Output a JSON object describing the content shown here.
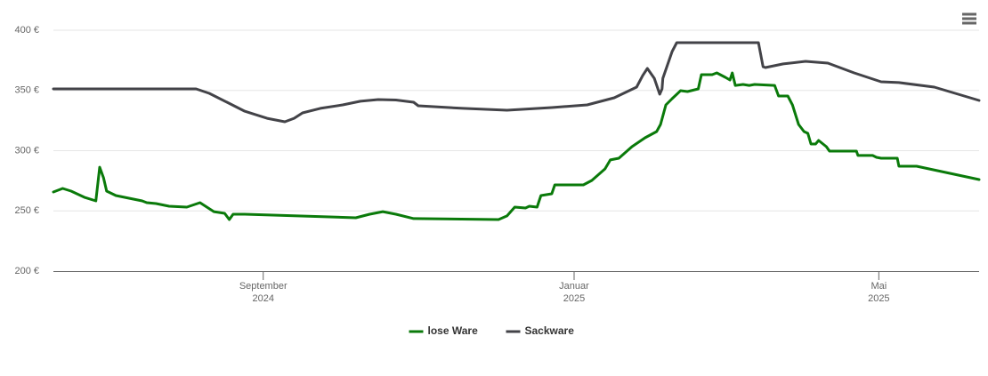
{
  "chart_data": {
    "type": "line",
    "xlim": [
      0,
      12
    ],
    "xticks": [
      {
        "value": 2.72,
        "label": "September 2024"
      },
      {
        "value": 6.75,
        "label": "Januar 2025"
      },
      {
        "value": 10.7,
        "label": "Mai 2025"
      }
    ],
    "ylim": [
      200,
      400
    ],
    "yticks": [
      {
        "value": 200,
        "label": "200 €"
      },
      {
        "value": 250,
        "label": "250 €"
      },
      {
        "value": 300,
        "label": "300 €"
      },
      {
        "value": 350,
        "label": "350 €"
      },
      {
        "value": 400,
        "label": "400 €"
      }
    ],
    "grid": true,
    "legend": "bottom",
    "series": [
      {
        "name": "lose Ware",
        "color": "#0a7a0a",
        "x": [
          0,
          0.12,
          0.23,
          0.4,
          0.55,
          0.6,
          0.65,
          0.69,
          0.81,
          1.15,
          1.21,
          1.33,
          1.5,
          1.73,
          1.9,
          2.08,
          2.22,
          2.28,
          2.33,
          2.48,
          3.92,
          4.1,
          4.27,
          4.44,
          4.67,
          5.77,
          5.88,
          5.98,
          6.12,
          6.17,
          6.27,
          6.32,
          6.46,
          6.5,
          6.87,
          6.98,
          7.15,
          7.22,
          7.33,
          7.5,
          7.67,
          7.82,
          7.87,
          7.94,
          8.02,
          8.13,
          8.22,
          8.36,
          8.4,
          8.54,
          8.6,
          8.71,
          8.77,
          8.8,
          8.84,
          8.94,
          9.02,
          9.09,
          9.35,
          9.4,
          9.52,
          9.58,
          9.66,
          9.73,
          9.78,
          9.82,
          9.88,
          9.92,
          10.02,
          10.06,
          10.41,
          10.43,
          10.62,
          10.67,
          10.73,
          10.94,
          10.96,
          11.19,
          12.0
        ],
        "values": [
          265.7,
          268.6,
          266.4,
          261.3,
          258.3,
          286.3,
          277.5,
          266.4,
          262.7,
          258.3,
          256.8,
          256.1,
          253.9,
          253.1,
          256.8,
          249.4,
          248.0,
          242.8,
          247.2,
          247.2,
          244.3,
          247.2,
          249.4,
          247.2,
          243.6,
          242.8,
          245.8,
          253.1,
          252.4,
          253.9,
          253.1,
          262.7,
          264.2,
          271.6,
          271.6,
          275.3,
          284.9,
          292.3,
          293.7,
          303.3,
          310.7,
          315.9,
          321.8,
          338.0,
          343.2,
          349.8,
          349.1,
          351.3,
          363.1,
          363.1,
          364.6,
          360.9,
          358.7,
          364.6,
          354.2,
          355.0,
          354.2,
          355.0,
          354.2,
          345.4,
          345.4,
          338.0,
          321.8,
          315.9,
          314.4,
          305.5,
          305.5,
          308.5,
          303.3,
          299.6,
          299.6,
          296.0,
          296.0,
          294.5,
          293.7,
          293.7,
          287.1,
          287.1,
          276.0
        ]
      },
      {
        "name": "Sackware",
        "color": "#434348",
        "x": [
          0,
          1.85,
          2.02,
          2.25,
          2.48,
          2.77,
          3.0,
          3.12,
          3.23,
          3.46,
          3.75,
          3.98,
          4.21,
          4.44,
          4.67,
          4.73,
          5.31,
          5.88,
          6.46,
          6.92,
          7.27,
          7.56,
          7.64,
          7.7,
          7.79,
          7.86,
          7.89,
          7.9,
          8.02,
          8.08,
          9.14,
          9.2,
          9.23,
          9.46,
          9.75,
          10.04,
          10.38,
          10.73,
          10.96,
          11.42,
          12.0
        ],
        "values": [
          351.3,
          351.3,
          347.6,
          340.2,
          332.8,
          326.9,
          324.0,
          326.9,
          331.4,
          335.1,
          338.0,
          341.0,
          342.4,
          342.1,
          340.2,
          337.3,
          335.1,
          333.6,
          335.8,
          338.0,
          343.9,
          352.8,
          362.4,
          368.3,
          360.1,
          346.9,
          351.3,
          360.1,
          382.3,
          389.7,
          389.7,
          369.7,
          369.0,
          372.0,
          374.2,
          372.7,
          364.6,
          357.2,
          356.5,
          352.8,
          341.7
        ]
      }
    ]
  }
}
